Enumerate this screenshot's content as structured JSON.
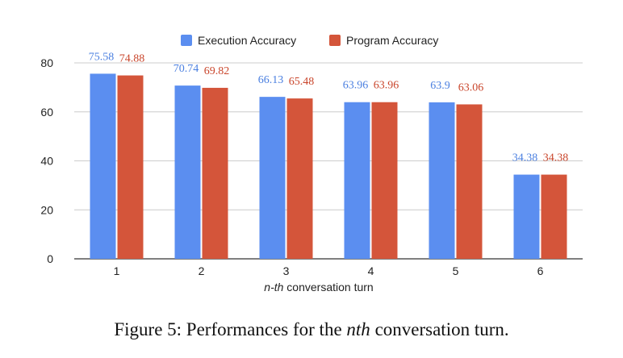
{
  "chart_data": {
    "type": "bar",
    "categories": [
      "1",
      "2",
      "3",
      "4",
      "5",
      "6"
    ],
    "series": [
      {
        "name": "Execution Accuracy",
        "values": [
          75.58,
          70.74,
          66.13,
          63.96,
          63.9,
          34.38
        ],
        "color": "#5b8ef0",
        "label_color": "#4a7fe0"
      },
      {
        "name": "Program Accuracy",
        "values": [
          74.88,
          69.82,
          65.48,
          63.96,
          63.06,
          34.38
        ],
        "color": "#d4553a",
        "label_color": "#c9452b"
      }
    ],
    "data_labels": [
      [
        "75.58",
        "70.74",
        "66.13",
        "63.96",
        "63.9",
        "34.38"
      ],
      [
        "74.88",
        "69.82",
        "65.48",
        "63.96",
        "63.06",
        "34.38"
      ]
    ],
    "y_ticks": [
      "0",
      "20",
      "40",
      "60",
      "80"
    ],
    "ylim": [
      0,
      80
    ],
    "xlabel_italic": "n-th",
    "xlabel_rest": " conversation turn",
    "ylabel": "",
    "legend_position": "top",
    "grid": true
  },
  "caption": {
    "prefix": "Figure 5: Performances for the ",
    "italic": "nth",
    "suffix": " conversation turn."
  }
}
